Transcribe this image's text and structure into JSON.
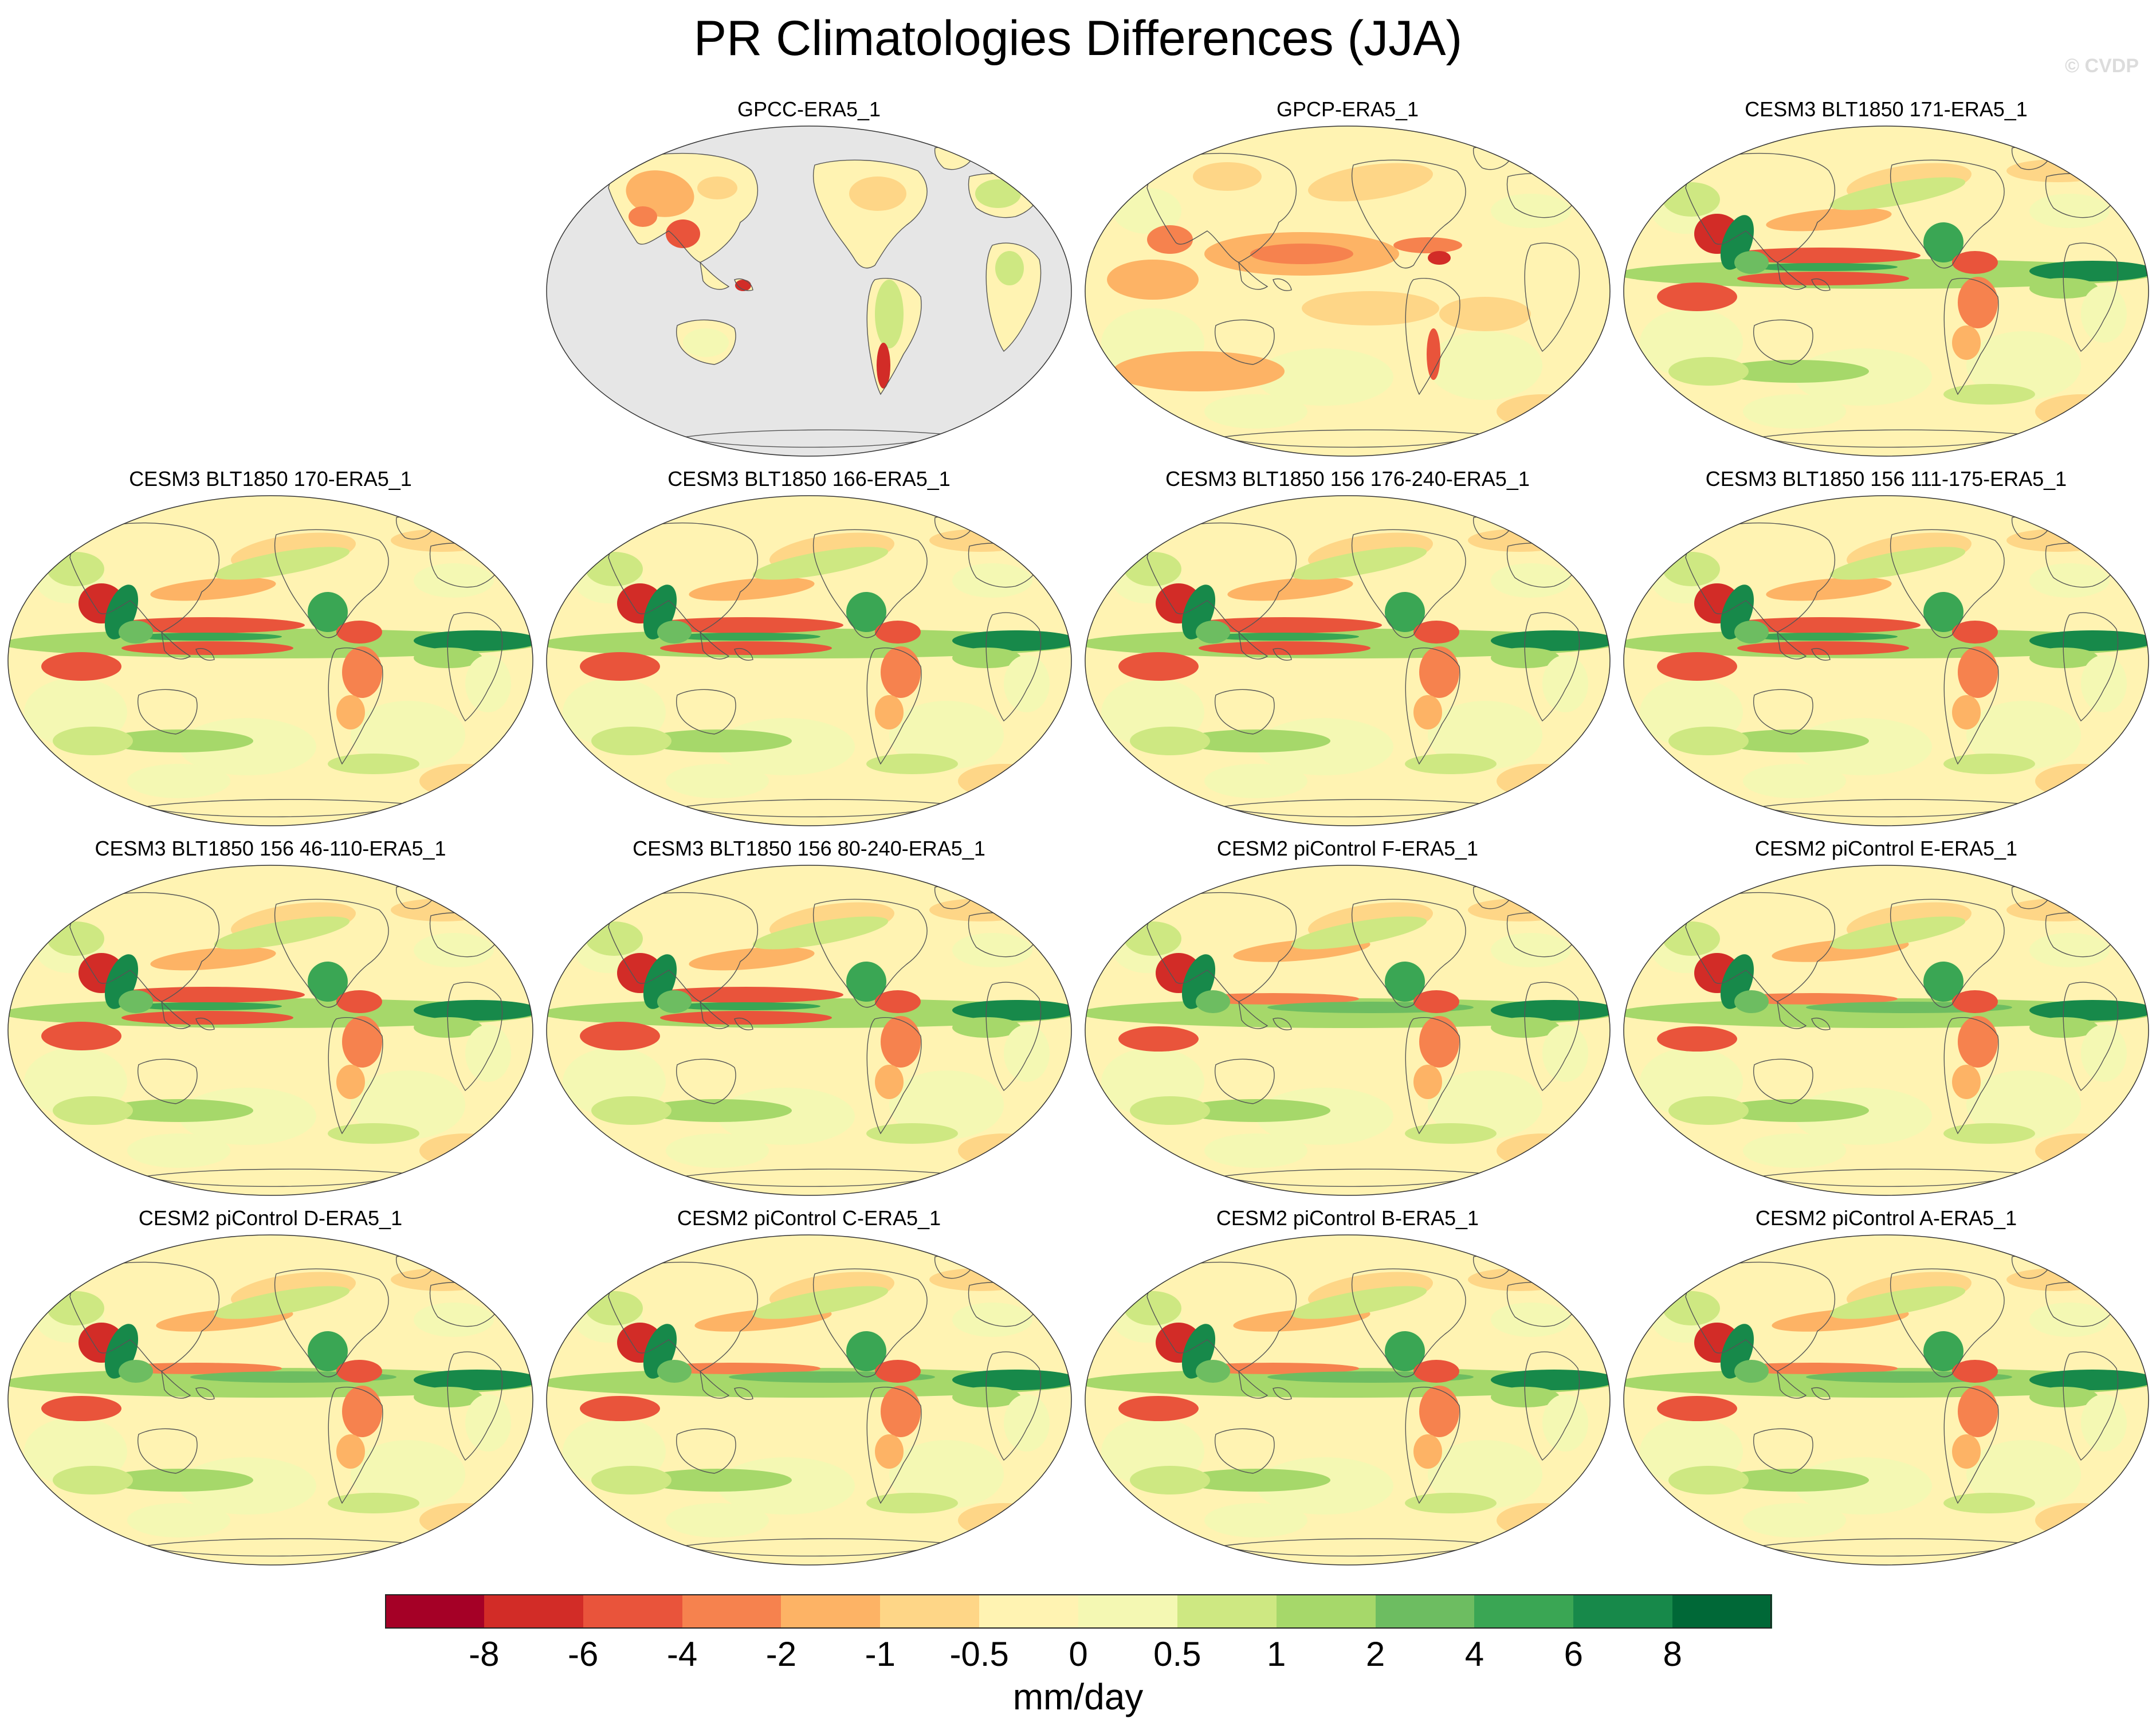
{
  "title": "PR Climatologies Differences (JJA)",
  "copyright": "© CVDP",
  "units": "mm/day",
  "panels": [
    {
      "label": "GPCC-ERA5_1",
      "style": "land",
      "row": 0,
      "col": 1
    },
    {
      "label": "GPCP-ERA5_1",
      "style": "obs",
      "row": 0,
      "col": 2
    },
    {
      "label": "CESM3 BLT1850 171-ERA5_1",
      "style": "cesm3",
      "row": 0,
      "col": 3
    },
    {
      "label": "CESM3 BLT1850 170-ERA5_1",
      "style": "cesm3",
      "row": 1,
      "col": 0
    },
    {
      "label": "CESM3 BLT1850 166-ERA5_1",
      "style": "cesm3",
      "row": 1,
      "col": 1
    },
    {
      "label": "CESM3 BLT1850 156 176-240-ERA5_1",
      "style": "cesm3",
      "row": 1,
      "col": 2
    },
    {
      "label": "CESM3 BLT1850 156 111-175-ERA5_1",
      "style": "cesm3",
      "row": 1,
      "col": 3
    },
    {
      "label": "CESM3 BLT1850 156 46-110-ERA5_1",
      "style": "cesm3",
      "row": 2,
      "col": 0
    },
    {
      "label": "CESM3 BLT1850 156 80-240-ERA5_1",
      "style": "cesm3",
      "row": 2,
      "col": 1
    },
    {
      "label": "CESM2 piControl F-ERA5_1",
      "style": "cesm2",
      "row": 2,
      "col": 2
    },
    {
      "label": "CESM2 piControl E-ERA5_1",
      "style": "cesm2",
      "row": 2,
      "col": 3
    },
    {
      "label": "CESM2 piControl D-ERA5_1",
      "style": "cesm2",
      "row": 3,
      "col": 0
    },
    {
      "label": "CESM2 piControl C-ERA5_1",
      "style": "cesm2",
      "row": 3,
      "col": 1
    },
    {
      "label": "CESM2 piControl B-ERA5_1",
      "style": "cesm2",
      "row": 3,
      "col": 2
    },
    {
      "label": "CESM2 piControl A-ERA5_1",
      "style": "cesm2",
      "row": 3,
      "col": 3
    }
  ],
  "colorbar": {
    "colors": [
      "#a50026",
      "#d22c27",
      "#e9543b",
      "#f6824e",
      "#fdb365",
      "#fed687",
      "#fff3b2",
      "#f4f8b3",
      "#cee882",
      "#a6d86a",
      "#6dbd61",
      "#3aa654",
      "#17894a",
      "#006837"
    ],
    "labels": [
      "-8",
      "-6",
      "-4",
      "-2",
      "-1",
      "-0.5",
      "0",
      "0.5",
      "1",
      "2",
      "4",
      "6",
      "8"
    ]
  },
  "colors": {
    "land_missing": "#e6e6e6",
    "coastline": "#555555",
    "neutral": "#fff3b2"
  }
}
